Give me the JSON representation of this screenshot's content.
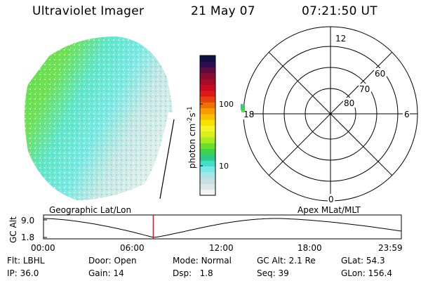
{
  "header": {
    "title": "Ultraviolet Imager",
    "date": "21 May 07",
    "time": "07:21:50 UT"
  },
  "colorbar": {
    "ticks": [
      "100",
      "10"
    ],
    "unit_label": "photon cm",
    "unit_sup1": "-2",
    "unit_mid": "s",
    "unit_sup2": "-1",
    "colors": [
      "#f4f4f4",
      "#dde6e6",
      "#c4e0e0",
      "#a6e6e6",
      "#7ae8e8",
      "#3ee0c8",
      "#2ec88a",
      "#3cd24a",
      "#6ade2a",
      "#a8ec20",
      "#d8f020",
      "#f4f42a",
      "#f8e000",
      "#f8c000",
      "#f89a00",
      "#f07000",
      "#e84010",
      "#e01818",
      "#c80c20",
      "#a80c28",
      "#880c30",
      "#600c40",
      "#300c50",
      "#101040"
    ]
  },
  "polar": {
    "mlt_labels": [
      "12",
      "18",
      "6",
      "0"
    ],
    "lat_labels": [
      "60",
      "70",
      "80"
    ]
  },
  "labels": {
    "geographic": "Geographic Lat/Lon",
    "apex": "Apex MLat/MLT"
  },
  "timeline": {
    "axis_label": "GC Alt",
    "y_ticks": [
      "9.0",
      "1.8"
    ],
    "x_ticks": [
      "00:00",
      "06:00",
      "12:00",
      "18:00",
      "23:59"
    ],
    "current_time_fraction": 0.3069
  },
  "info": {
    "flt_label": "Flt:",
    "flt_value": "LBHL",
    "ip_label": "IP:",
    "ip_value": "36.0",
    "door_label": "Door:",
    "door_value": "Open",
    "gain_label": "Gain:",
    "gain_value": "14",
    "mode_label": "Mode:",
    "mode_value": "Normal",
    "dsp_label": "Dsp:",
    "dsp_value": "1.8",
    "gcalt_label": "GC Alt:",
    "gcalt_value": "2.1 Re",
    "seq_label": "Seq:",
    "seq_value": "39",
    "glat_label": "GLat:",
    "glat_value": "54.3",
    "glon_label": "GLon:",
    "glon_value": "156.4"
  },
  "colors": {
    "marker": "#e01010",
    "earth_green": "#6ee03c",
    "earth_cyan": "#5ee8e0",
    "earth_pale": "#dceae8"
  }
}
